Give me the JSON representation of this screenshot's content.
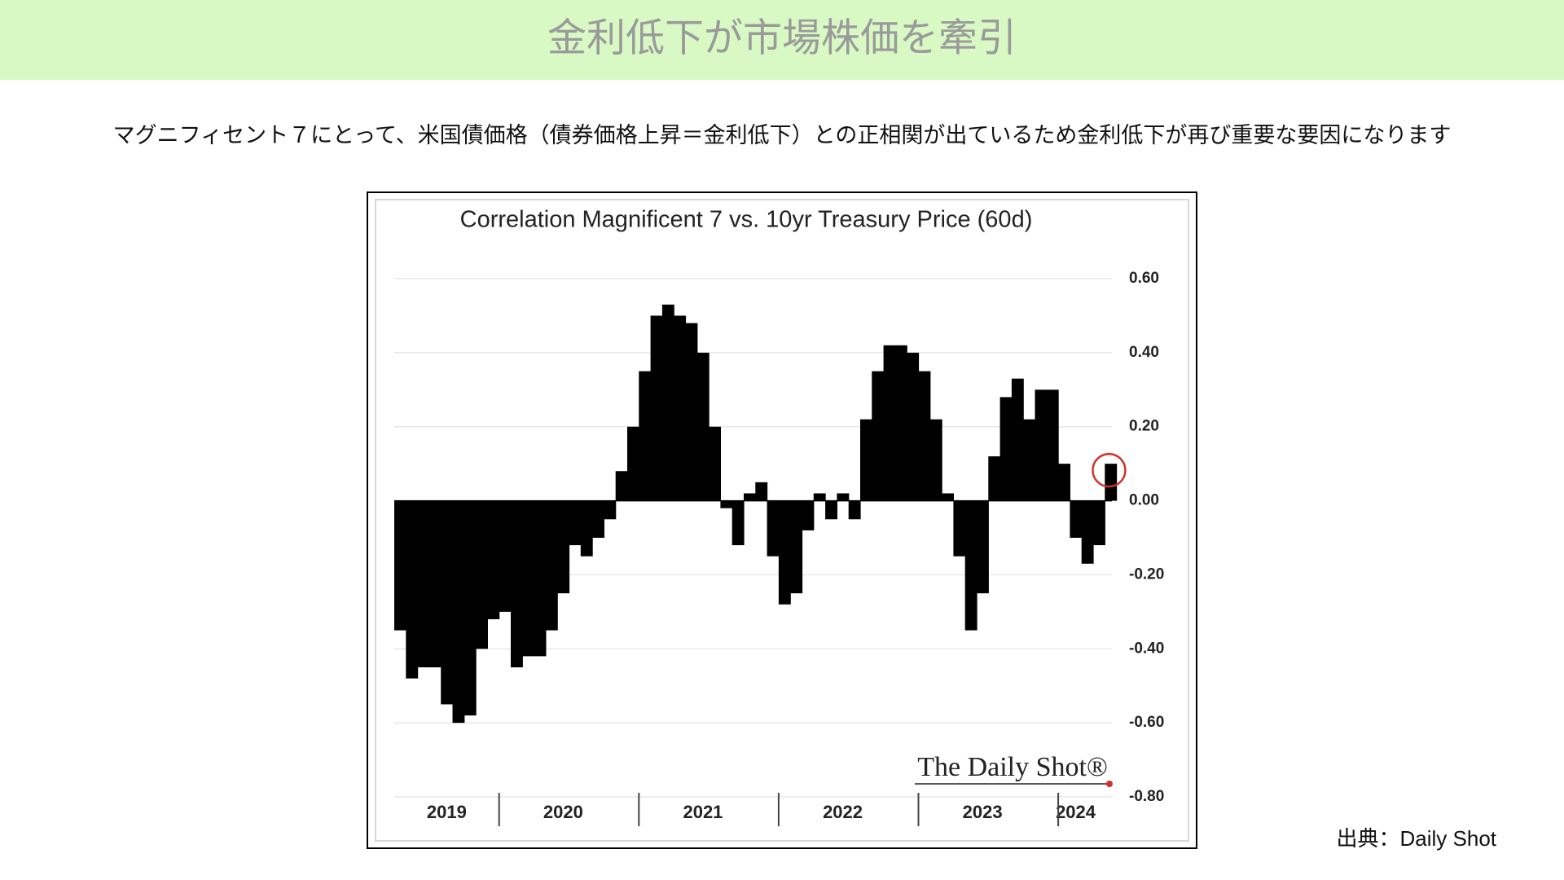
{
  "header": {
    "title": "金利低下が市場株価を牽引"
  },
  "subtitle": "マグニフィセント７にとって、米国債価格（債券価格上昇＝金利低下）との正相関が出ているため金利低下が再び重要な要因になります",
  "source": "出典：Daily Shot",
  "chart_data": {
    "type": "bar",
    "title": "Correlation Magnificent 7 vs. 10yr Treasury Price (60d)",
    "watermark": "The Daily Shot®",
    "color": "#000000",
    "highlight_color": "#d0312d",
    "grid": true,
    "categories": [
      null,
      null,
      null,
      null,
      "2019",
      null,
      null,
      null,
      null,
      null,
      null,
      null,
      null,
      null,
      "2020",
      null,
      null,
      null,
      null,
      null,
      null,
      null,
      null,
      null,
      null,
      null,
      "2021",
      null,
      null,
      null,
      null,
      null,
      null,
      null,
      null,
      null,
      null,
      null,
      "2022",
      null,
      null,
      null,
      null,
      null,
      null,
      null,
      null,
      null,
      null,
      null,
      "2023",
      null,
      null,
      null,
      null,
      null,
      null,
      null,
      "2024",
      null,
      null,
      null
    ],
    "values": [
      -0.35,
      -0.48,
      -0.45,
      -0.45,
      -0.55,
      -0.6,
      -0.58,
      -0.4,
      -0.32,
      -0.3,
      -0.45,
      -0.42,
      -0.42,
      -0.35,
      -0.25,
      -0.12,
      -0.15,
      -0.1,
      -0.05,
      0.08,
      0.2,
      0.35,
      0.5,
      0.53,
      0.5,
      0.48,
      0.4,
      0.2,
      -0.02,
      -0.12,
      0.02,
      0.05,
      -0.15,
      -0.28,
      -0.25,
      -0.08,
      0.02,
      -0.05,
      0.02,
      -0.05,
      0.22,
      0.35,
      0.42,
      0.42,
      0.4,
      0.35,
      0.22,
      0.02,
      -0.15,
      -0.35,
      -0.25,
      0.12,
      0.28,
      0.33,
      0.22,
      0.3,
      0.3,
      0.1,
      -0.1,
      -0.17,
      -0.12,
      0.1
    ],
    "ylim": [
      -0.8,
      0.6
    ],
    "yticks": [
      {
        "value": -0.8,
        "label": "-0.80"
      },
      {
        "value": -0.6,
        "label": "-0.60"
      },
      {
        "value": -0.4,
        "label": "-0.40"
      },
      {
        "value": -0.2,
        "label": "-0.20"
      },
      {
        "value": 0,
        "label": "0.00"
      },
      {
        "value": 0.2,
        "label": "0.20"
      },
      {
        "value": 0.4,
        "label": "0.40"
      },
      {
        "value": 0.6,
        "label": "0.60"
      }
    ]
  }
}
